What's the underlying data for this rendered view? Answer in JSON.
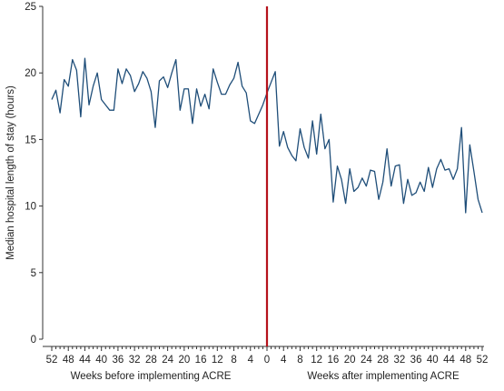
{
  "chart_data": {
    "type": "line",
    "title": "",
    "ylabel": "Median hospital length of stay (hours)",
    "ylim": [
      0,
      25
    ],
    "yticks": [
      0,
      5,
      10,
      15,
      20,
      25
    ],
    "grid": false,
    "legend": "none",
    "x_week_range": [
      -52,
      52
    ],
    "xtick_labels_before": [
      "52",
      "48",
      "44",
      "40",
      "36",
      "32",
      "28",
      "24",
      "20",
      "16",
      "12",
      "8",
      "4"
    ],
    "xtick_label_zero": "0",
    "xtick_labels_after": [
      "4",
      "8",
      "12",
      "16",
      "20",
      "24",
      "28",
      "32",
      "36",
      "40",
      "44",
      "48",
      "52"
    ],
    "xlabel_before": "Weeks before implementing ACRE",
    "xlabel_after": "Weeks after implementing ACRE",
    "intervention_week": 0,
    "intervention_color": "#b5121b",
    "series_color": "#1f4e79",
    "series": [
      {
        "name": "",
        "x": [
          -52,
          -51,
          -50,
          -49,
          -48,
          -47,
          -46,
          -45,
          -44,
          -43,
          -42,
          -41,
          -40,
          -39,
          -38,
          -37,
          -36,
          -35,
          -34,
          -33,
          -32,
          -31,
          -30,
          -29,
          -28,
          -27,
          -26,
          -25,
          -24,
          -23,
          -22,
          -21,
          -20,
          -19,
          -18,
          -17,
          -16,
          -15,
          -14,
          -13,
          -12,
          -11,
          -10,
          -9,
          -8,
          -7,
          -6,
          -5,
          -4,
          -3,
          -2,
          -1,
          0,
          1,
          2,
          3,
          4,
          5,
          6,
          7,
          8,
          9,
          10,
          11,
          12,
          13,
          14,
          15,
          16,
          17,
          18,
          19,
          20,
          21,
          22,
          23,
          24,
          25,
          26,
          27,
          28,
          29,
          30,
          31,
          32,
          33,
          34,
          35,
          36,
          37,
          38,
          39,
          40,
          41,
          42,
          43,
          44,
          45,
          46,
          47,
          48,
          49,
          50,
          51,
          52
        ],
        "values": [
          18.0,
          18.7,
          17.0,
          19.5,
          19.0,
          21.0,
          20.2,
          16.7,
          21.1,
          17.6,
          19.0,
          20.0,
          18.0,
          17.6,
          17.2,
          17.2,
          20.3,
          19.2,
          20.3,
          19.8,
          18.6,
          19.2,
          20.1,
          19.6,
          18.6,
          15.9,
          19.4,
          19.7,
          18.9,
          20.0,
          21.0,
          17.2,
          18.8,
          18.8,
          16.2,
          18.8,
          17.5,
          18.4,
          17.3,
          20.3,
          19.3,
          18.4,
          18.4,
          19.1,
          19.6,
          20.8,
          19.0,
          18.5,
          16.4,
          16.2,
          16.9,
          17.6,
          18.5,
          19.3,
          20.1,
          14.5,
          15.6,
          14.4,
          13.8,
          13.4,
          15.8,
          14.4,
          13.6,
          16.4,
          13.9,
          16.9,
          14.3,
          15.0,
          10.3,
          13.0,
          12.0,
          10.2,
          12.8,
          11.1,
          11.4,
          12.1,
          11.5,
          12.7,
          12.6,
          10.5,
          11.8,
          14.3,
          11.5,
          13.0,
          13.1,
          10.2,
          12.0,
          10.8,
          11.0,
          11.8,
          11.1,
          12.9,
          11.4,
          12.8,
          13.5,
          12.7,
          12.8,
          12.0,
          12.8,
          15.9,
          9.5,
          14.6,
          12.6,
          10.5,
          9.5
        ]
      }
    ]
  }
}
